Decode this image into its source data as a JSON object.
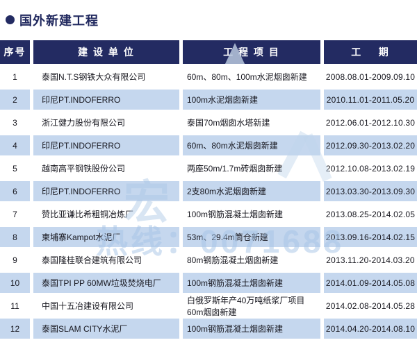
{
  "title": "国外新建工程",
  "colors": {
    "header_bg": "#232b62",
    "header_text": "#ffffff",
    "alt_row_bg": "#c5d7ee",
    "body_text": "#17171f",
    "title_text": "#20285e"
  },
  "watermark": {
    "char": "宏",
    "hotline": "热线：0071688"
  },
  "table": {
    "headers": {
      "no": "序号",
      "company": "建 设 单 位",
      "project": "工 程 项 目",
      "period": "工    期"
    },
    "rows": [
      {
        "no": "1",
        "company": "泰国N.T.S钢铁大众有限公司",
        "project": "60m、80m、100m水泥烟囱新建",
        "period": "2008.08.01-2009.09.10"
      },
      {
        "no": "2",
        "company": "印尼PT.INDOFERRO",
        "project": "100m水泥烟囱新建",
        "period": "2010.11.01-2011.05.20"
      },
      {
        "no": "3",
        "company": "浙江健力股份有限公司",
        "project": "泰国70m烟囱水塔新建",
        "period": "2012.06.01-2012.10.30"
      },
      {
        "no": "4",
        "company": "印尼PT.INDOFERRO",
        "project": "60m、80m水泥烟囱新建",
        "period": "2012.09.30-2013.02.20"
      },
      {
        "no": "5",
        "company": "越南高平钢铁股份公司",
        "project": "两座50m/1.7m砖烟囱新建",
        "period": "2012.10.08-2013.02.19"
      },
      {
        "no": "6",
        "company": "印尼PT.INDOFERRO",
        "project": "2支80m水泥烟囱新建",
        "period": "2013.03.30-2013.09.30"
      },
      {
        "no": "7",
        "company": "赞比亚谦比希粗铜冶炼厂",
        "project": "100m钢筋混凝土烟囱新建",
        "period": "2013.08.25-2014.02.05"
      },
      {
        "no": "8",
        "company": "柬埔寨Kampot水泥厂",
        "project": "53m、29.4m筒仓新建",
        "period": "2013.09.16-2014.02.15"
      },
      {
        "no": "9",
        "company": "泰国隆桂联合建筑有限公司",
        "project": "80m钢筋混凝土烟囱新建",
        "period": "2013.11.20-2014.03.20"
      },
      {
        "no": "10",
        "company": "泰国TPI PP 60MW垃圾焚烧电厂",
        "project": "100m钢筋混凝土烟囱新建",
        "period": "2014.01.09-2014.05.08"
      },
      {
        "no": "11",
        "company": "中国十五冶建设有限公司",
        "project": "白俄罗斯年产40万吨纸浆厂项目60m烟囱新建",
        "period": "2014.02.08-2014.05.28"
      },
      {
        "no": "12",
        "company": "泰国SLAM CITY水泥厂",
        "project": "100m钢筋混凝土烟囱新建",
        "period": "2014.04.20-2014.08.10"
      }
    ]
  }
}
